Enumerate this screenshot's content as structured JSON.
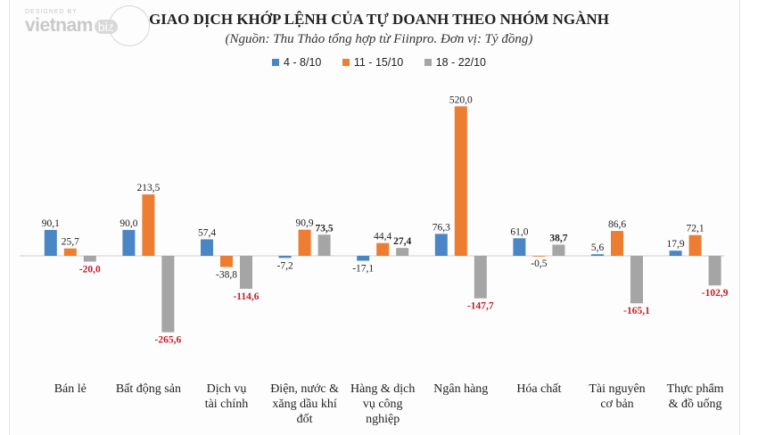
{
  "watermark": {
    "top": "DESIGNED BY",
    "brand": "vietnam",
    "suffix": "biz"
  },
  "chart_data": {
    "type": "bar",
    "title": "GIAO DỊCH KHỚP LỆNH CỦA TỰ DOANH THEO NHÓM NGÀNH",
    "subtitle": "(Nguồn: Thu Thảo tổng hợp từ Fiinpro. Đơn vị: Tỷ đồng)",
    "categories": [
      [
        "Bán lẻ"
      ],
      [
        "Bất động sản"
      ],
      [
        "Dịch vụ",
        "tài chính"
      ],
      [
        "Điện, nước &",
        "xăng dầu khí",
        "đốt"
      ],
      [
        "Hàng & dịch",
        "vụ công",
        "nghiệp"
      ],
      [
        "Ngân hàng"
      ],
      [
        "Hóa chất"
      ],
      [
        "Tài nguyên",
        "cơ bản"
      ],
      [
        "Thực phẩm",
        "& đồ uống"
      ]
    ],
    "series": [
      {
        "name": "4 - 8/10",
        "color": "#4a86c6",
        "values": [
          90.1,
          90.0,
          57.4,
          -7.2,
          -17.1,
          76.3,
          61.0,
          5.6,
          17.9
        ],
        "labels": [
          "90,1",
          "90,0",
          "57,4",
          "-7,2",
          "-17,1",
          "76,3",
          "61,0",
          "5,6",
          "17,9"
        ]
      },
      {
        "name": "11 - 15/10",
        "color": "#ed7d31",
        "values": [
          25.7,
          213.5,
          -38.8,
          90.9,
          44.4,
          520.0,
          -0.5,
          86.6,
          72.1
        ],
        "labels": [
          "25,7",
          "213,5",
          "-38,8",
          "90,9",
          "44,4",
          "520,0",
          "-0,5",
          "86,6",
          "72,1"
        ]
      },
      {
        "name": "18 - 22/10",
        "color": "#a5a5a5",
        "values": [
          -20.0,
          -265.6,
          -114.6,
          73.5,
          27.4,
          -147.7,
          38.7,
          -165.1,
          -102.9
        ],
        "labels": [
          "-20,0",
          "-265,6",
          "-114,6",
          "73,5",
          "27,4",
          "-147,7",
          "38,7",
          "-165,1",
          "-102,9"
        ]
      }
    ],
    "legend_position": "top",
    "grid": false
  }
}
